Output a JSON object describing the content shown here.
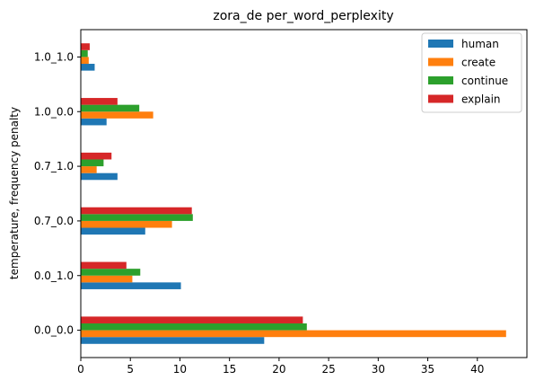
{
  "chart_data": {
    "type": "bar",
    "orientation": "horizontal",
    "title": "zora_de per_word_perplexity",
    "xlabel": "",
    "ylabel": "temperature, frequency penalty",
    "categories": [
      "0.0_0.0",
      "0.0_1.0",
      "0.7_0.0",
      "0.7_1.0",
      "1.0_0.0",
      "1.0_1.0"
    ],
    "xlim": [
      0,
      45
    ],
    "xticks": [
      "0",
      "5",
      "10",
      "15",
      "20",
      "25",
      "30",
      "35",
      "40"
    ],
    "grid": false,
    "legend_position": "top-right",
    "series": [
      {
        "name": "human",
        "color": "#1f77b4",
        "values": [
          18.5,
          10.1,
          6.5,
          3.7,
          2.6,
          1.4
        ]
      },
      {
        "name": "create",
        "color": "#ff7f0e",
        "values": [
          42.9,
          5.2,
          9.2,
          1.6,
          7.3,
          0.8
        ]
      },
      {
        "name": "continue",
        "color": "#2ca02c",
        "values": [
          22.8,
          6.0,
          11.3,
          2.3,
          5.9,
          0.7
        ]
      },
      {
        "name": "explain",
        "color": "#d62728",
        "values": [
          22.4,
          4.6,
          11.2,
          3.1,
          3.7,
          0.9
        ]
      }
    ]
  }
}
